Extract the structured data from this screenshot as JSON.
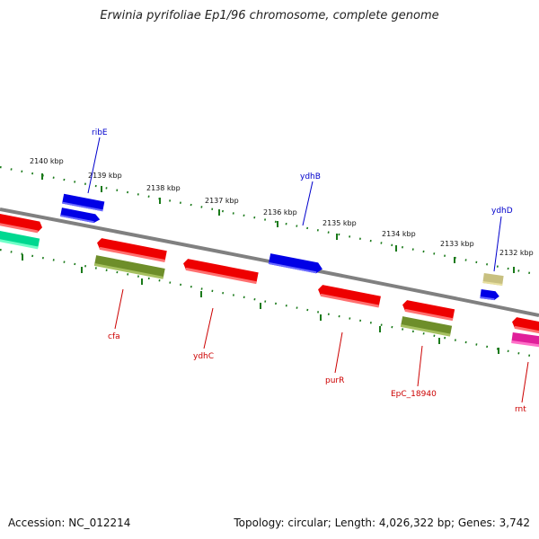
{
  "header": {
    "title": "Erwinia pyrifoliae Ep1/96 chromosome, complete genome"
  },
  "footer": {
    "accession": "Accession: NC_012214",
    "stats": "Topology: circular; Length: 4,026,322 bp; Genes: 3,742"
  },
  "map": {
    "kbp_labels": [
      "2140 kbp",
      "2139 kbp",
      "2138 kbp",
      "2137 kbp",
      "2136 kbp",
      "2135 kbp",
      "2134 kbp",
      "2133 kbp",
      "2132 kbp"
    ],
    "gene_names": {
      "ribE": "ribE",
      "ydhB": "ydhB",
      "ydhD": "ydhD",
      "cfa": "cfa",
      "ydhC": "ydhC",
      "purR": "purR",
      "epc": "EpC_18940",
      "rnt": "rnt"
    },
    "colors": {
      "forward_label": "#0000cc",
      "reverse_label": "#cc0000",
      "backbone": "#808080",
      "tick": "#1a7a1a"
    }
  }
}
